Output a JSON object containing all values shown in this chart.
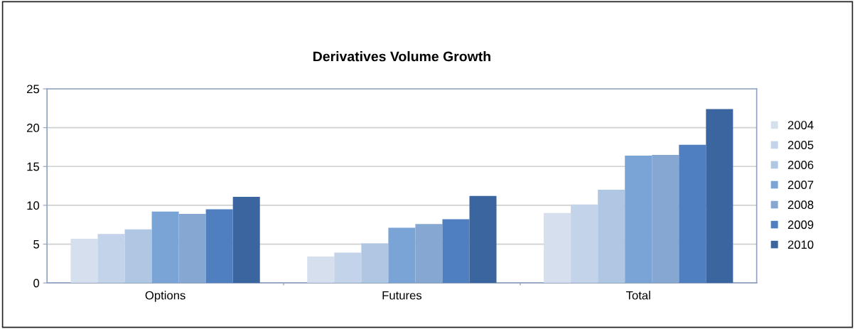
{
  "chart_data": {
    "type": "bar",
    "title": "Derivatives Volume Growth",
    "categories": [
      "Options",
      "Futures",
      "Total"
    ],
    "series": [
      {
        "name": "2004",
        "color": "#d5dfee",
        "values": [
          5.7,
          3.4,
          9.0
        ]
      },
      {
        "name": "2005",
        "color": "#c3d3ea",
        "values": [
          6.3,
          3.9,
          10.1
        ]
      },
      {
        "name": "2006",
        "color": "#b0c7e3",
        "values": [
          6.9,
          5.1,
          12.0
        ]
      },
      {
        "name": "2007",
        "color": "#7aa3d6",
        "values": [
          9.2,
          7.1,
          16.4
        ]
      },
      {
        "name": "2008",
        "color": "#86a7d2",
        "values": [
          8.9,
          7.6,
          16.5
        ]
      },
      {
        "name": "2009",
        "color": "#4f7fbf",
        "values": [
          9.5,
          8.2,
          17.8
        ]
      },
      {
        "name": "2010",
        "color": "#3a659f",
        "values": [
          11.1,
          11.2,
          22.4
        ]
      }
    ],
    "ylim": [
      0,
      25
    ],
    "yticks": [
      0,
      5,
      10,
      15,
      20,
      25
    ],
    "grid": "y",
    "legend": "right"
  }
}
